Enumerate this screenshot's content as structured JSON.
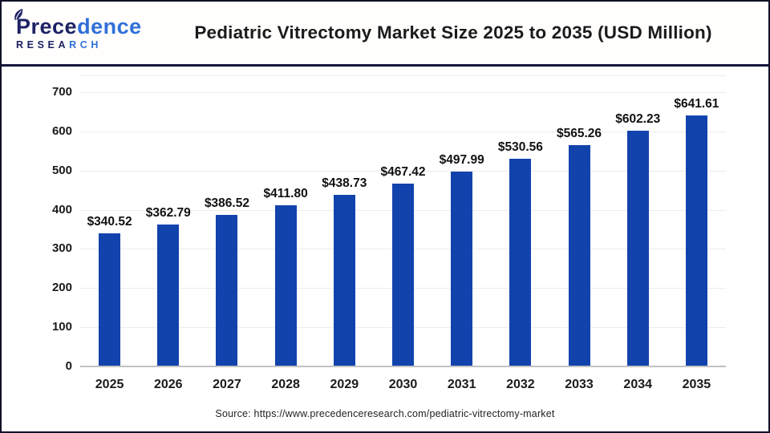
{
  "header": {
    "logo": {
      "name_part1": "Prece",
      "name_part2": "dence",
      "subtitle_part1": "RESEA",
      "subtitle_part2": "RCH"
    },
    "title": "Pediatric Vitrectomy Market Size 2025 to 2035 (USD Million)"
  },
  "chart_data": {
    "type": "bar",
    "title": "Pediatric Vitrectomy Market Size 2025 to 2035 (USD Million)",
    "categories": [
      "2025",
      "2026",
      "2027",
      "2028",
      "2029",
      "2030",
      "2031",
      "2032",
      "2033",
      "2034",
      "2035"
    ],
    "values": [
      340.52,
      362.79,
      386.52,
      411.8,
      438.73,
      467.42,
      497.99,
      530.56,
      565.26,
      602.23,
      641.61
    ],
    "bar_labels": [
      "$340.52",
      "$362.79",
      "$386.52",
      "$411.80",
      "$438.73",
      "$467.42",
      "$497.99",
      "$530.56",
      "$565.26",
      "$602.23",
      "$641.61"
    ],
    "xlabel": "",
    "ylabel": "",
    "ylim": [
      0,
      700
    ],
    "yticks": [
      0,
      100,
      200,
      300,
      400,
      500,
      600,
      700
    ],
    "grid": true,
    "legend": false,
    "bar_color": "#1243ad"
  },
  "footer": {
    "source": "Source: https://www.precedenceresearch.com/pediatric-vitrectomy-market"
  },
  "colors": {
    "bar": "#1243ad",
    "gridline": "#ececec",
    "baseline": "#c2c2c2",
    "divider": "#15163d",
    "outer_border": "#10102a",
    "logo_dark": "#1d2264",
    "logo_blue": "#2f6fd8",
    "title_text": "#1b1b1b"
  }
}
